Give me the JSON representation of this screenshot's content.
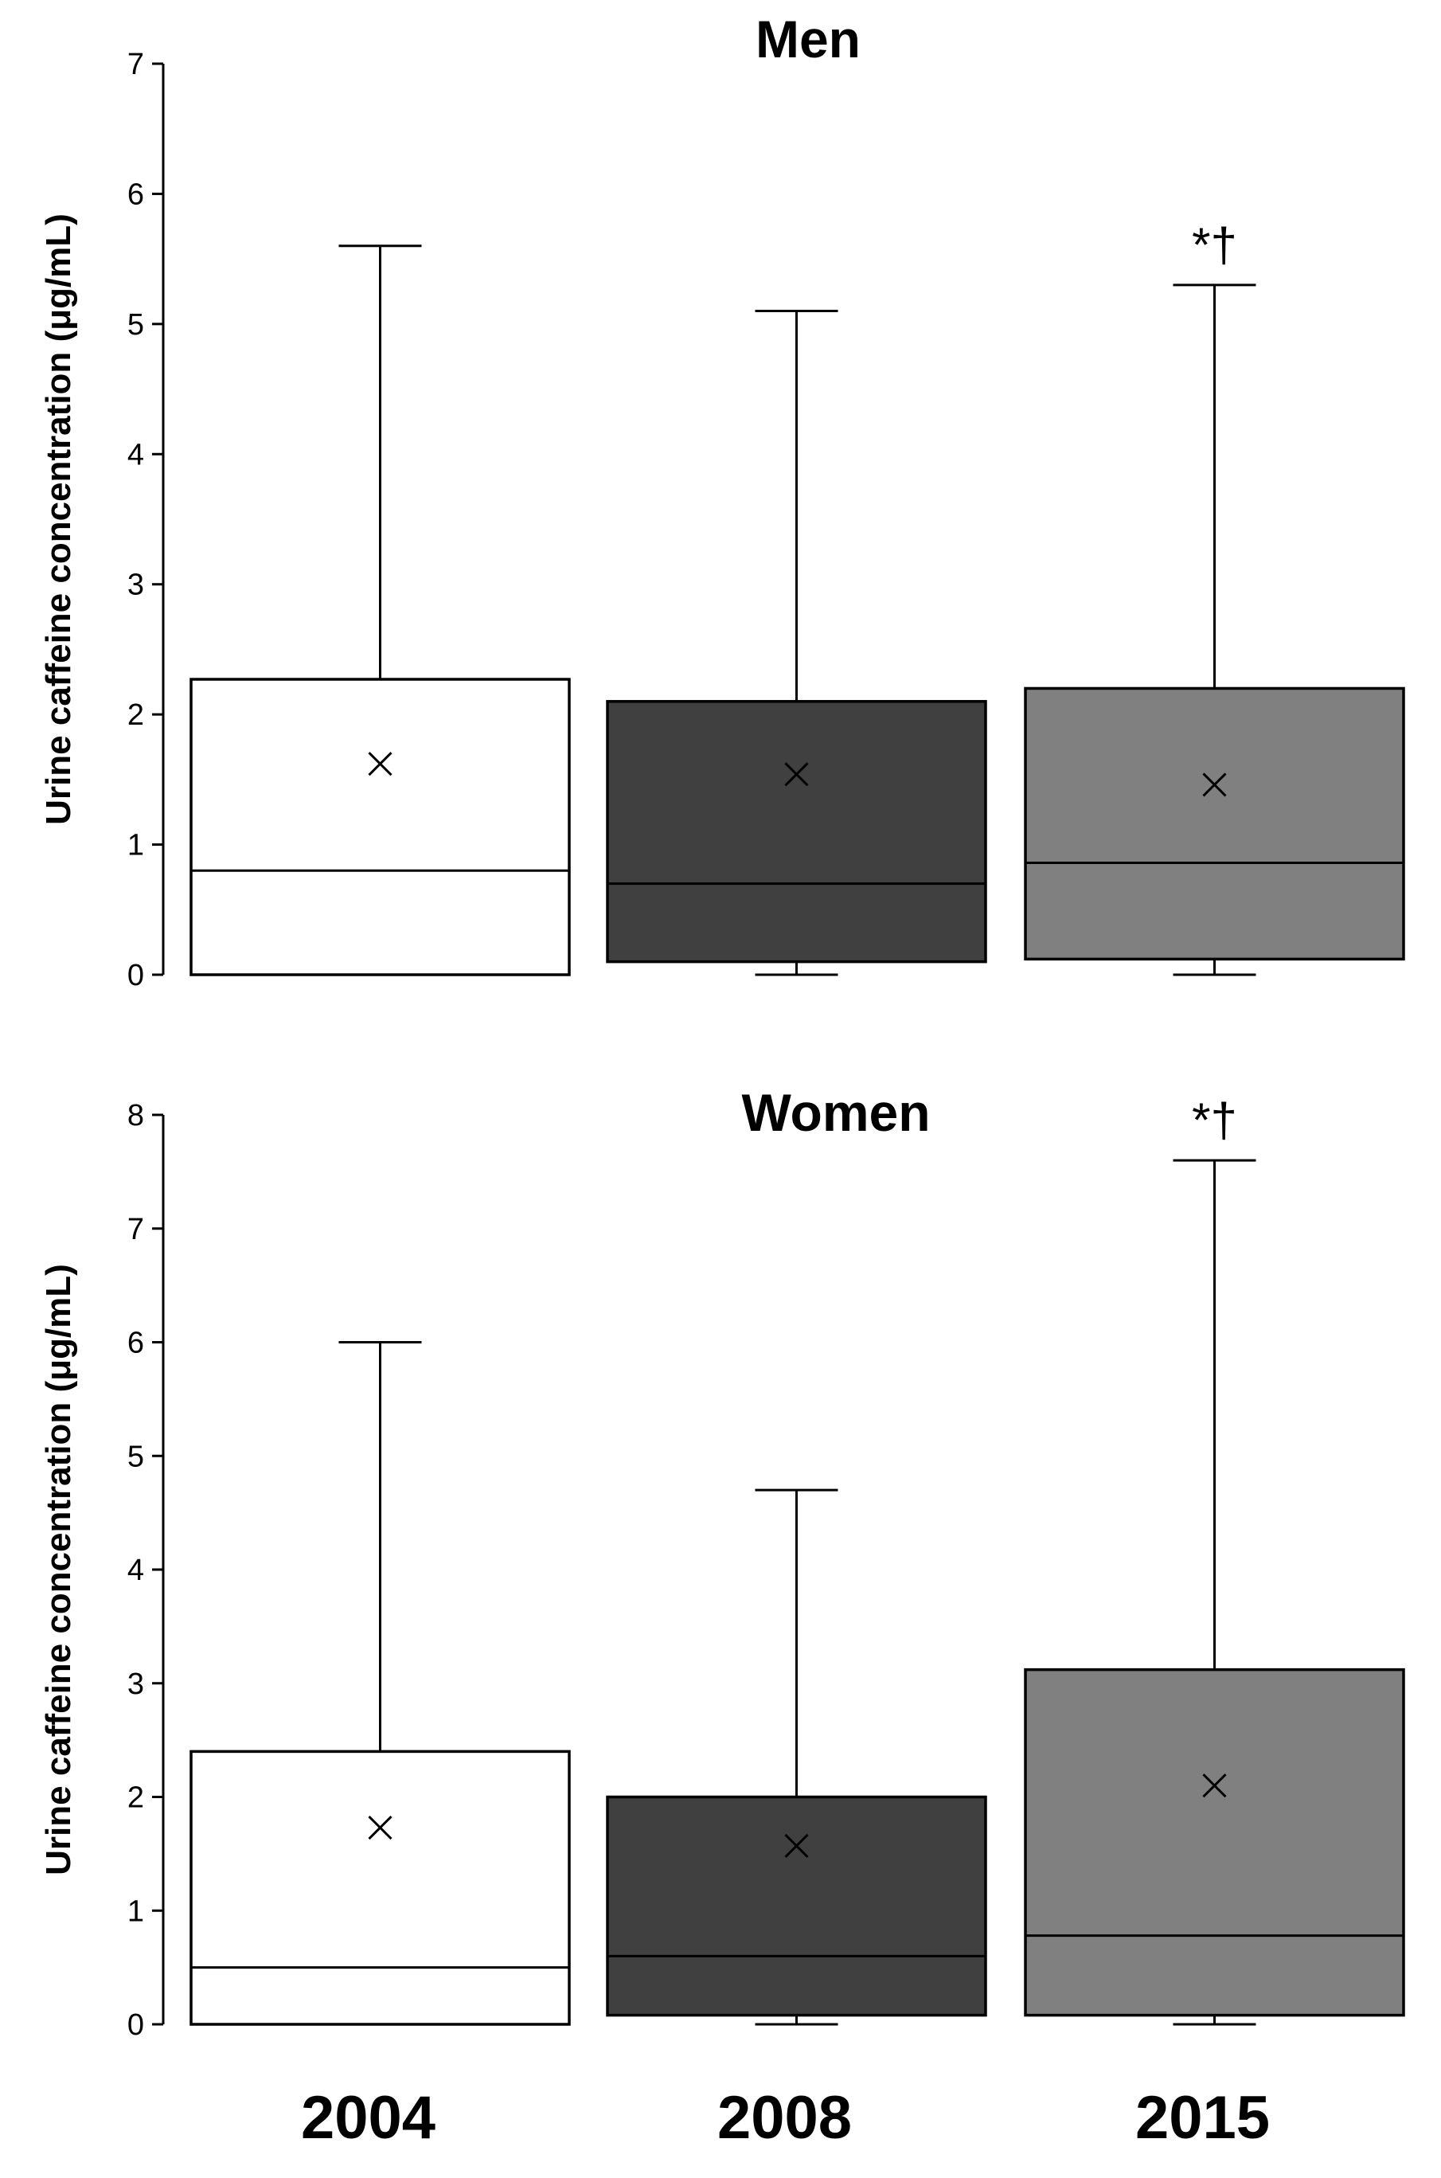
{
  "chart_data": [
    {
      "type": "box",
      "title": "Men",
      "xlabel": "",
      "ylabel": "Urine caffeine concentration (μg/mL)",
      "ylim": [
        0,
        7
      ],
      "yticks": [
        0,
        1,
        2,
        3,
        4,
        5,
        6,
        7
      ],
      "categories": [
        "2004",
        "2008",
        "2015"
      ],
      "colors": [
        "#ffffff",
        "#404040",
        "#808080"
      ],
      "boxes": [
        {
          "category": "2004",
          "min": 0.0,
          "q1": 0.0,
          "median": 0.8,
          "q3": 2.27,
          "max": 5.6,
          "mean": 1.62,
          "annotation": ""
        },
        {
          "category": "2008",
          "min": 0.0,
          "q1": 0.1,
          "median": 0.7,
          "q3": 2.1,
          "max": 5.1,
          "mean": 1.54,
          "annotation": ""
        },
        {
          "category": "2015",
          "min": 0.0,
          "q1": 0.12,
          "median": 0.86,
          "q3": 2.2,
          "max": 5.3,
          "mean": 1.46,
          "annotation": "*†"
        }
      ]
    },
    {
      "type": "box",
      "title": "Women",
      "xlabel": "",
      "ylabel": "Urine caffeine concentration (μg/mL)",
      "ylim": [
        0,
        8
      ],
      "yticks": [
        0,
        1,
        2,
        3,
        4,
        5,
        6,
        7,
        8
      ],
      "categories": [
        "2004",
        "2008",
        "2015"
      ],
      "colors": [
        "#ffffff",
        "#404040",
        "#808080"
      ],
      "boxes": [
        {
          "category": "2004",
          "min": 0.0,
          "q1": 0.0,
          "median": 0.5,
          "q3": 2.4,
          "max": 6.0,
          "mean": 1.73,
          "annotation": ""
        },
        {
          "category": "2008",
          "min": 0.0,
          "q1": 0.08,
          "median": 0.6,
          "q3": 2.0,
          "max": 4.7,
          "mean": 1.57,
          "annotation": ""
        },
        {
          "category": "2015",
          "min": 0.0,
          "q1": 0.08,
          "median": 0.78,
          "q3": 3.12,
          "max": 7.6,
          "mean": 2.1,
          "annotation": "*†"
        }
      ]
    }
  ]
}
